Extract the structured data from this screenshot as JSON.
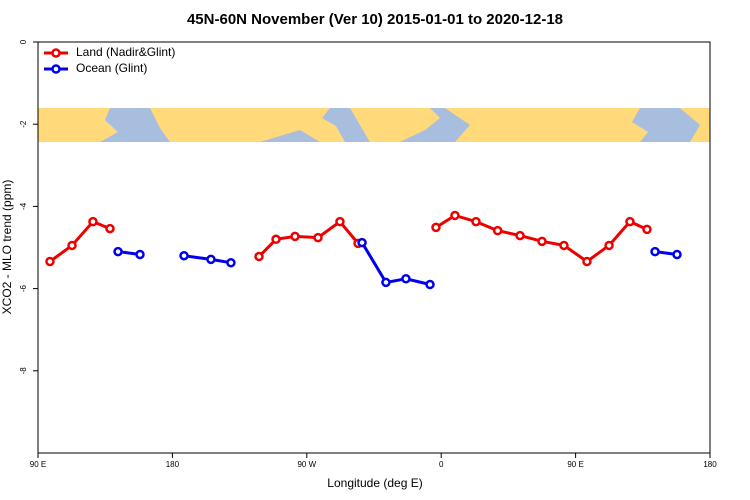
{
  "chart_data": {
    "type": "line",
    "title": "45N-60N November (Ver 10)   2015-01-01 to 2020-12-18",
    "xlabel": "Longitude (deg E)",
    "ylabel": "XCO2 - MLO trend (ppm)",
    "xlim": [
      90,
      540
    ],
    "ylim": [
      -10,
      0
    ],
    "xticks": [
      {
        "value": 90,
        "label": "90 E"
      },
      180,
      {
        "value": 270,
        "label": "90 W"
      },
      {
        "value": 360,
        "label": "0"
      },
      {
        "value": 450,
        "label": "90 E"
      },
      {
        "value": 540,
        "label": "180"
      }
    ],
    "yticks": [
      0,
      -2,
      -4,
      -6,
      -8
    ],
    "legend": "top-left",
    "series": [
      {
        "name": "Land (Nadir&Glint)",
        "color": "#ee0000",
        "x": [
          98,
          112.8,
          126.8,
          138.2,
          null,
          238,
          249.4,
          262.1,
          277.5,
          292.2,
          304.3,
          null,
          356.5,
          369.2,
          383.3,
          397.8,
          412.8,
          427.5,
          442.2,
          457.6,
          472.4,
          486.4,
          497.8
        ],
        "values": [
          -5.34,
          -4.95,
          -4.37,
          -4.54,
          null,
          -5.22,
          -4.8,
          -4.73,
          -4.76,
          -4.37,
          -4.9,
          null,
          -4.51,
          -4.22,
          -4.37,
          -4.59,
          -4.71,
          -4.85,
          -4.95,
          -5.34,
          -4.95,
          -4.37,
          -4.56
        ]
      },
      {
        "name": "Ocean (Glint)",
        "color": "#0000ee",
        "x": [
          143.6,
          158.3,
          null,
          187.8,
          205.8,
          219.2,
          null,
          307,
          323,
          336.4,
          352.5,
          null,
          503.2,
          517.9
        ],
        "values": [
          -5.1,
          -5.17,
          null,
          -5.2,
          -5.29,
          -5.37,
          null,
          -4.88,
          -5.85,
          -5.76,
          -5.9,
          null,
          -5.1,
          -5.17
        ]
      }
    ]
  }
}
